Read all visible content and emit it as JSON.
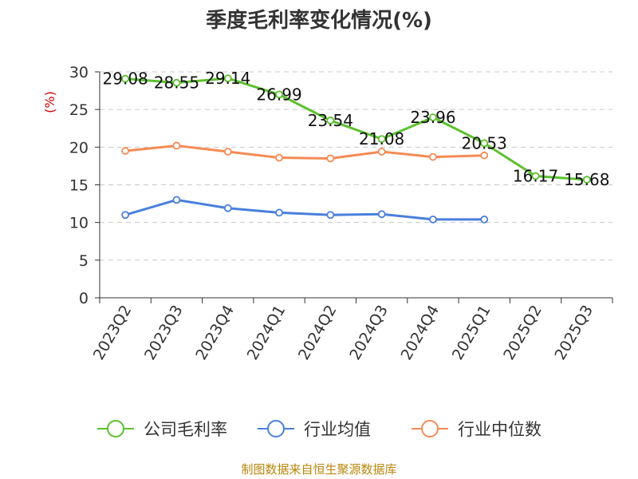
{
  "title": "季度毛利率变化情况(%)",
  "unit_label": "(%)",
  "source": "制图数据来自恒生聚源数据库",
  "chart_data": {
    "type": "line",
    "title": "季度毛利率变化情况(%)",
    "ylabel": "(%)",
    "xlabel": "",
    "ylim": [
      0,
      30
    ],
    "yticks": [
      0,
      5,
      10,
      15,
      20,
      25,
      30
    ],
    "grid": true,
    "legend_position": "bottom",
    "categories": [
      "2023Q2",
      "2023Q3",
      "2023Q4",
      "2024Q1",
      "2024Q2",
      "2024Q3",
      "2024Q4",
      "2025Q1",
      "2025Q2",
      "2025Q3"
    ],
    "series": [
      {
        "name": "公司毛利率",
        "color": "#5cc12e",
        "values": [
          29.08,
          28.55,
          29.14,
          26.99,
          23.54,
          21.08,
          23.96,
          20.53,
          16.17,
          15.68
        ],
        "labels": [
          "29.08",
          "28.55",
          "29.14",
          "26.99",
          "23.54",
          "21.08",
          "23.96",
          "20.53",
          "16.17",
          "15.68"
        ]
      },
      {
        "name": "行业均值",
        "color": "#4a7fdc",
        "values": [
          11.0,
          13.0,
          11.9,
          11.3,
          11.0,
          11.1,
          10.4,
          10.4,
          null,
          null
        ]
      },
      {
        "name": "行业中位数",
        "color": "#f58a55",
        "values": [
          19.5,
          20.2,
          19.4,
          18.6,
          18.5,
          19.4,
          18.7,
          18.9,
          null,
          null
        ]
      }
    ]
  }
}
